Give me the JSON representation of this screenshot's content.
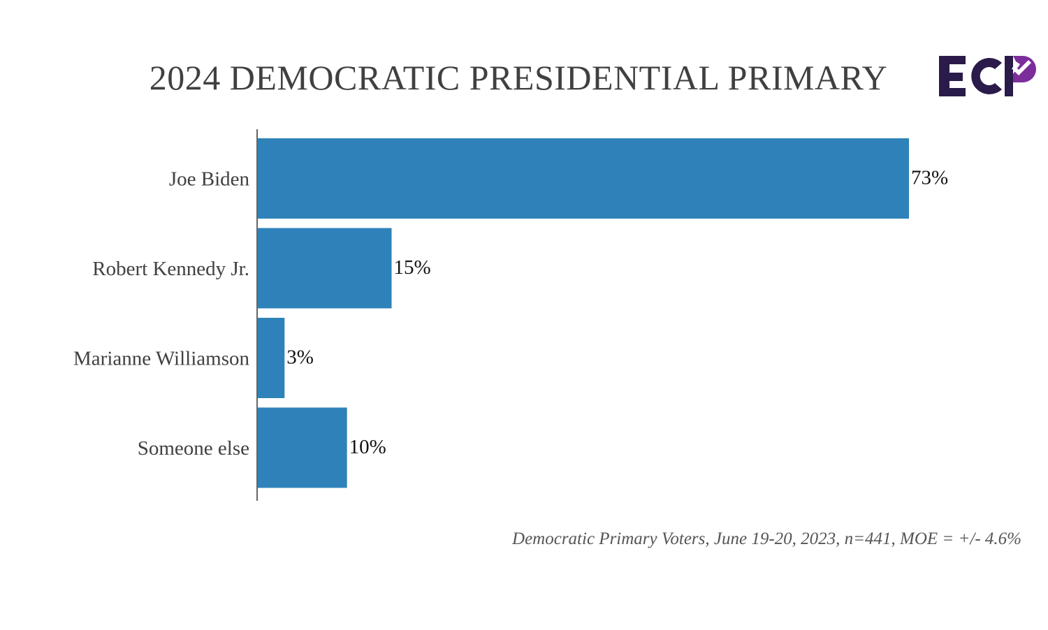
{
  "header": {
    "title": "2024 DEMOCRATIC PRESIDENTIAL PRIMARY",
    "logo_text": "ECP",
    "logo_colors": {
      "dark": "#2a1b4a",
      "accent": "#7b2d9a"
    }
  },
  "chart_data": {
    "type": "bar",
    "orientation": "horizontal",
    "title": "2024 DEMOCRATIC PRESIDENTIAL PRIMARY",
    "categories": [
      "Joe Biden",
      "Robert Kennedy Jr.",
      "Marianne Williamson",
      "Someone else"
    ],
    "values": [
      73,
      15,
      3,
      10
    ],
    "value_labels": [
      "73%",
      "15%",
      "3%",
      "10%"
    ],
    "unit": "%",
    "xlim": [
      0,
      100
    ],
    "grid": false,
    "legend": "none",
    "bar_color": "#2e82b9",
    "xlabel": "",
    "ylabel": ""
  },
  "footnote": "Democratic Primary Voters, June 19-20, 2023, n=441, MOE = +/- 4.6%"
}
